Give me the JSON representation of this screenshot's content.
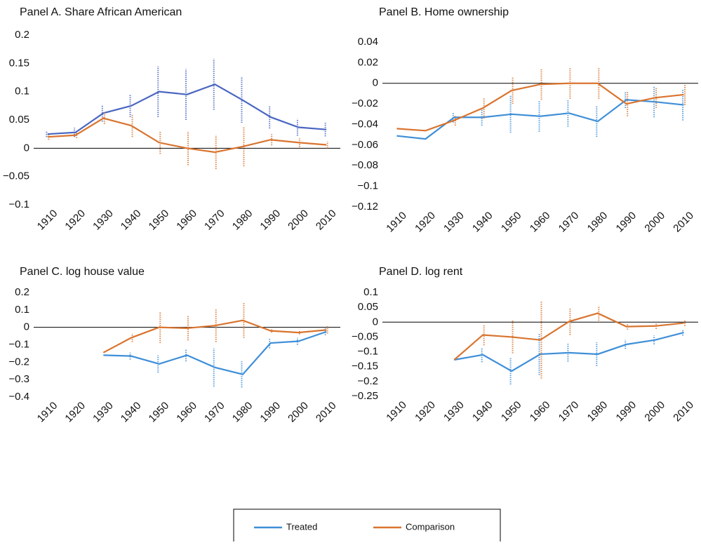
{
  "chart_data": [
    {
      "type": "line",
      "title": "Panel A. Share African American",
      "categories": [
        "1910",
        "1920",
        "1930",
        "1940",
        "1950",
        "1960",
        "1970",
        "1980",
        "1990",
        "2000",
        "2010"
      ],
      "ylim": [
        -0.1,
        0.2
      ],
      "yticks": [
        {
          "value": -0.1,
          "label": "−0.1"
        },
        {
          "value": -0.05,
          "label": "−0.05"
        },
        0,
        0.05,
        0.1,
        0.15,
        0.2
      ],
      "series": [
        {
          "name": "Treated",
          "color": "#4a67c1",
          "values": [
            0.025,
            0.028,
            0.062,
            0.075,
            0.1,
            0.095,
            0.113,
            0.085,
            0.055,
            0.037,
            0.033
          ],
          "errors": [
            0.005,
            0.008,
            0.015,
            0.02,
            0.045,
            0.045,
            0.045,
            0.04,
            0.02,
            0.015,
            0.012
          ]
        },
        {
          "name": "Comparison",
          "color": "#d9742f",
          "values": [
            0.02,
            0.023,
            0.053,
            0.04,
            0.01,
            0.0,
            -0.007,
            0.003,
            0.015,
            0.01,
            0.006
          ],
          "errors": [
            0.005,
            0.005,
            0.01,
            0.02,
            0.02,
            0.03,
            0.03,
            0.035,
            0.01,
            0.008,
            0.006
          ]
        }
      ]
    },
    {
      "type": "line",
      "title": "Panel B. Home ownership",
      "categories": [
        "1910",
        "1920",
        "1930",
        "1940",
        "1950",
        "1960",
        "1970",
        "1980",
        "1990",
        "2000",
        "2010"
      ],
      "ylim": [
        -0.12,
        0.04
      ],
      "yticks": [
        {
          "value": -0.12,
          "label": "−0.12"
        },
        {
          "value": -0.1,
          "label": "−0.1"
        },
        {
          "value": -0.08,
          "label": "−0.08"
        },
        {
          "value": -0.06,
          "label": "−0.06"
        },
        {
          "value": -0.04,
          "label": "−0.04"
        },
        {
          "value": -0.02,
          "label": "−0.02"
        },
        0,
        0.02,
        0.04
      ],
      "series": [
        {
          "name": "Treated",
          "color": "#3f8fd8",
          "values": [
            -0.051,
            -0.054,
            -0.033,
            -0.033,
            -0.03,
            -0.032,
            -0.029,
            -0.037,
            -0.016,
            -0.018,
            -0.021
          ],
          "errors": [
            null,
            null,
            0.005,
            0.008,
            0.018,
            0.015,
            0.013,
            0.015,
            0.008,
            0.015,
            0.015
          ]
        },
        {
          "name": "Comparison",
          "color": "#d9742f",
          "values": [
            -0.044,
            -0.046,
            -0.036,
            -0.024,
            -0.007,
            -0.001,
            0,
            0,
            -0.02,
            -0.014,
            -0.011
          ],
          "errors": [
            null,
            null,
            0.005,
            0.01,
            0.013,
            0.015,
            0.015,
            0.015,
            0.012,
            0.01,
            0.01
          ]
        }
      ]
    },
    {
      "type": "line",
      "title": "Panel C. log house value",
      "categories": [
        "1910",
        "1920",
        "1930",
        "1940",
        "1950",
        "1960",
        "1970",
        "1980",
        "1990",
        "2000",
        "2010"
      ],
      "ylim": [
        -0.4,
        0.2
      ],
      "yticks": [
        {
          "value": -0.4,
          "label": "−0.4"
        },
        {
          "value": -0.3,
          "label": "−0.3"
        },
        {
          "value": -0.2,
          "label": "−0.2"
        },
        {
          "value": -0.1,
          "label": "−0.1"
        },
        0,
        0.1,
        0.2
      ],
      "series": [
        {
          "name": "Treated",
          "color": "#3f8fd8",
          "values": [
            null,
            null,
            -0.16,
            -0.165,
            -0.21,
            -0.16,
            -0.23,
            -0.27,
            -0.09,
            -0.08,
            -0.025
          ],
          "errors": [
            null,
            null,
            null,
            0.02,
            0.05,
            0.035,
            0.11,
            0.075,
            0.03,
            0.02,
            0.02
          ]
        },
        {
          "name": "Comparison",
          "color": "#d9742f",
          "values": [
            null,
            null,
            -0.145,
            -0.06,
            0,
            -0.005,
            0.01,
            0.04,
            -0.02,
            -0.03,
            -0.015
          ],
          "errors": [
            null,
            null,
            null,
            0.025,
            0.09,
            0.07,
            0.095,
            0.1,
            0.01,
            0.01,
            0.02
          ]
        }
      ]
    },
    {
      "type": "line",
      "title": "Panel D. log rent",
      "categories": [
        "1910",
        "1920",
        "1930",
        "1940",
        "1950",
        "1960",
        "1970",
        "1980",
        "1990",
        "2000",
        "2010"
      ],
      "ylim": [
        -0.25,
        0.1
      ],
      "yticks": [
        {
          "value": -0.25,
          "label": "−0.25"
        },
        {
          "value": -0.2,
          "label": "−0.2"
        },
        {
          "value": -0.15,
          "label": "−0.15"
        },
        {
          "value": -0.1,
          "label": "−0.1"
        },
        {
          "value": -0.05,
          "label": "−0.05"
        },
        0,
        0.05,
        0.1
      ],
      "series": [
        {
          "name": "Treated",
          "color": "#3f8fd8",
          "values": [
            null,
            null,
            -0.127,
            -0.11,
            -0.165,
            -0.108,
            -0.103,
            -0.108,
            -0.075,
            -0.06,
            -0.035
          ],
          "errors": [
            null,
            null,
            null,
            0.025,
            0.045,
            0.07,
            0.03,
            0.04,
            0.015,
            0.015,
            0.01
          ]
        },
        {
          "name": "Comparison",
          "color": "#d9742f",
          "values": [
            null,
            null,
            -0.127,
            -0.043,
            -0.05,
            -0.06,
            0.002,
            0.03,
            -0.015,
            -0.013,
            -0.003
          ],
          "errors": [
            null,
            null,
            null,
            0.035,
            0.055,
            0.13,
            0.045,
            0.025,
            0.01,
            0.01,
            0.01
          ]
        }
      ]
    }
  ]
}
